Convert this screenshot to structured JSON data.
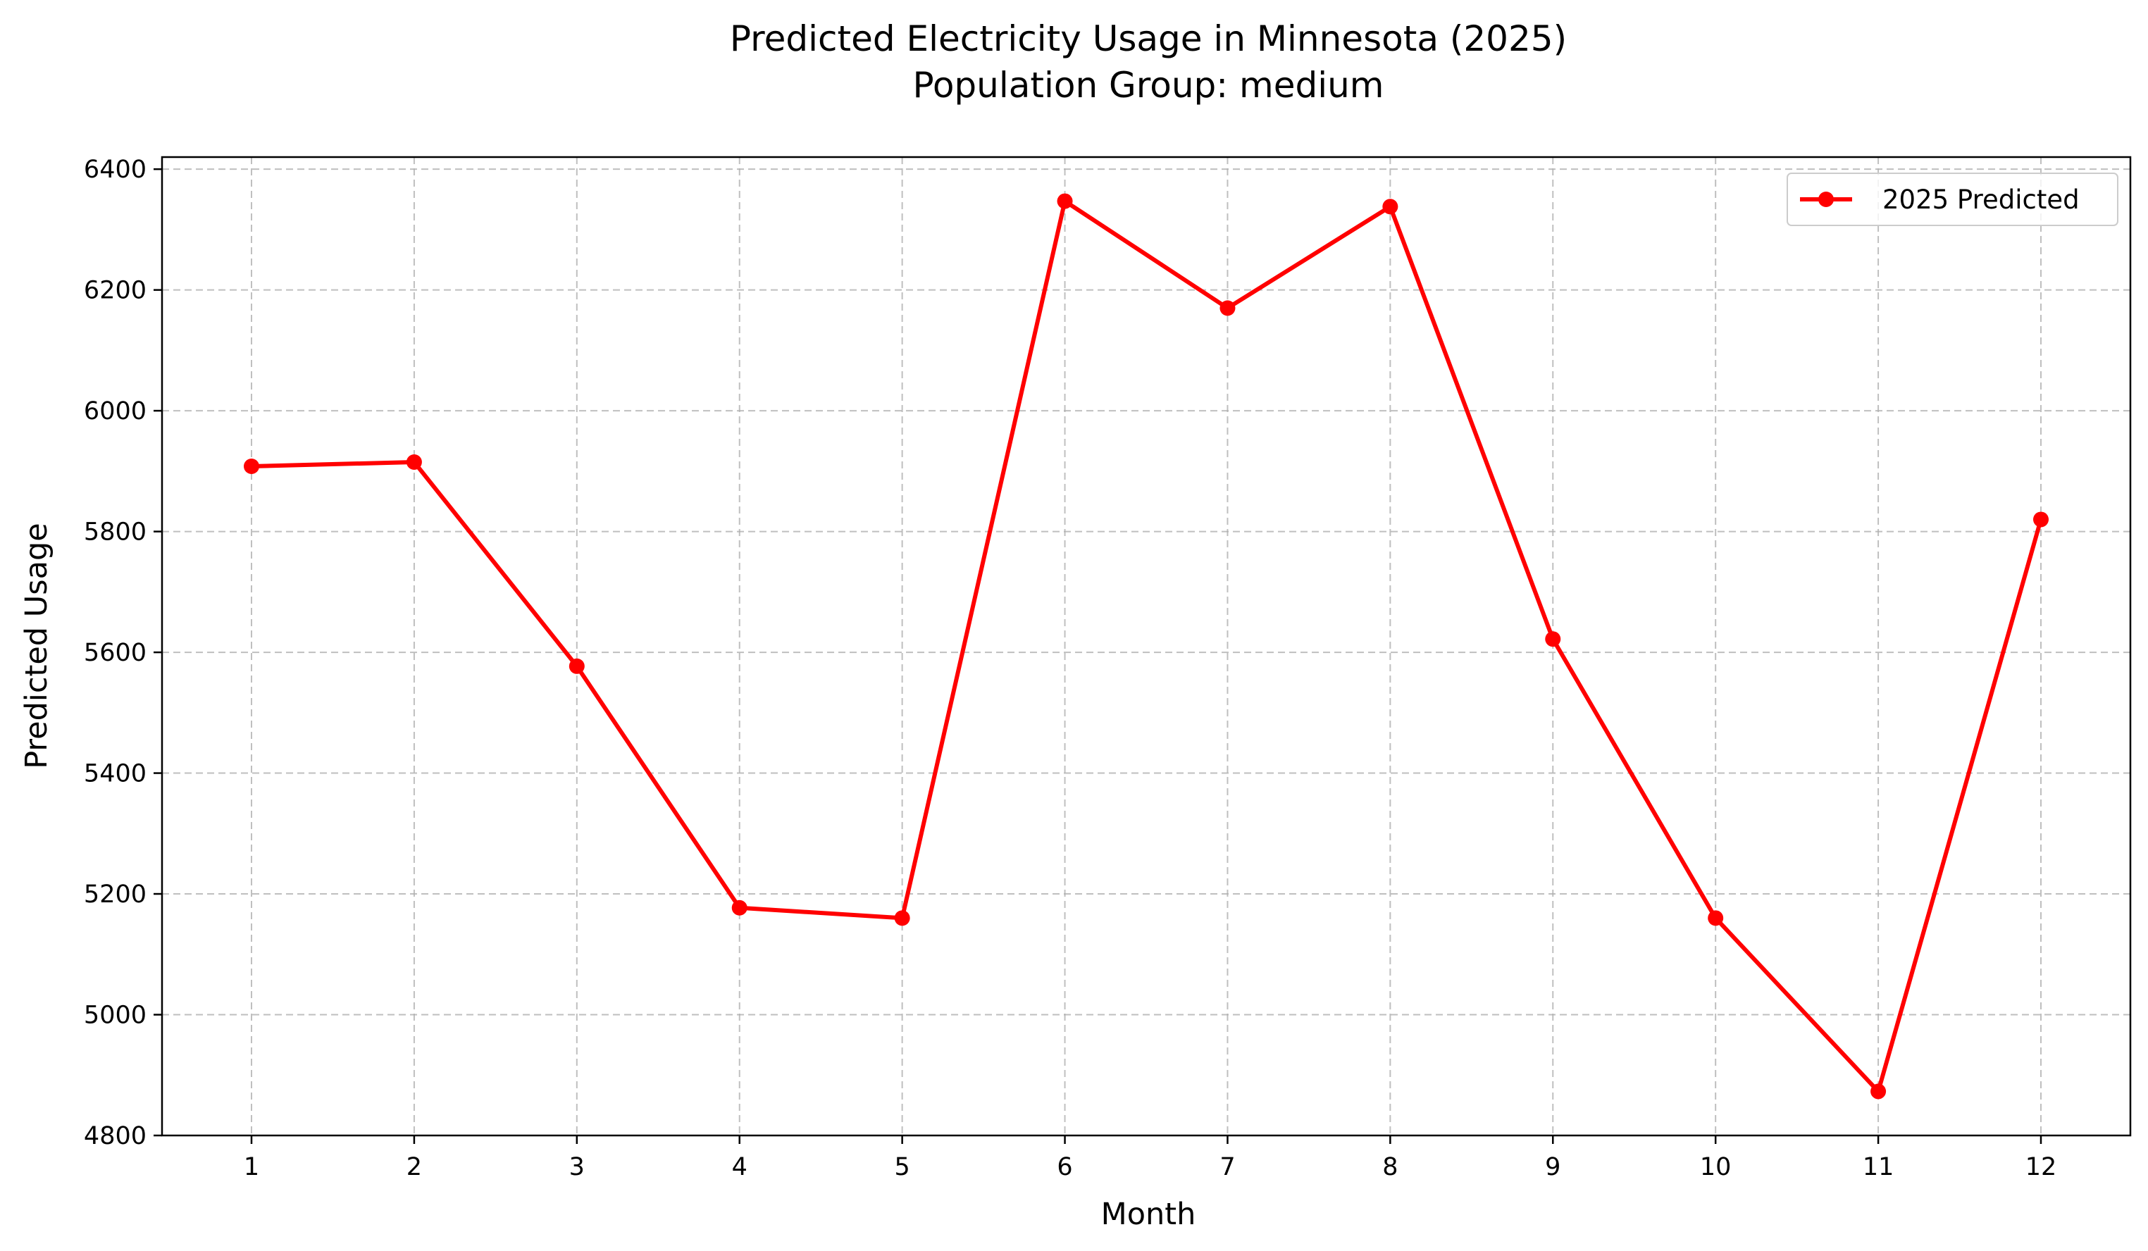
{
  "chart_data": {
    "type": "line",
    "title_line1": "Predicted Electricity Usage in Minnesota (2025)",
    "title_line2": "Population Group: medium",
    "xlabel": "Month",
    "ylabel": "Predicted Usage",
    "x": [
      1,
      2,
      3,
      4,
      5,
      6,
      7,
      8,
      9,
      10,
      11,
      12
    ],
    "xlim": [
      0.45,
      12.55
    ],
    "ylim": [
      4800,
      6420
    ],
    "yticks": [
      4800,
      5000,
      5200,
      5400,
      5600,
      5800,
      6000,
      6200,
      6400
    ],
    "grid": true,
    "legend_position": "top-right",
    "series": [
      {
        "name": "2025 Predicted",
        "color": "#ff0000",
        "marker": "circle",
        "values": [
          5908,
          5915,
          5577,
          5177,
          5160,
          6347,
          6170,
          6338,
          5622,
          5160,
          4873,
          5820
        ]
      }
    ]
  }
}
